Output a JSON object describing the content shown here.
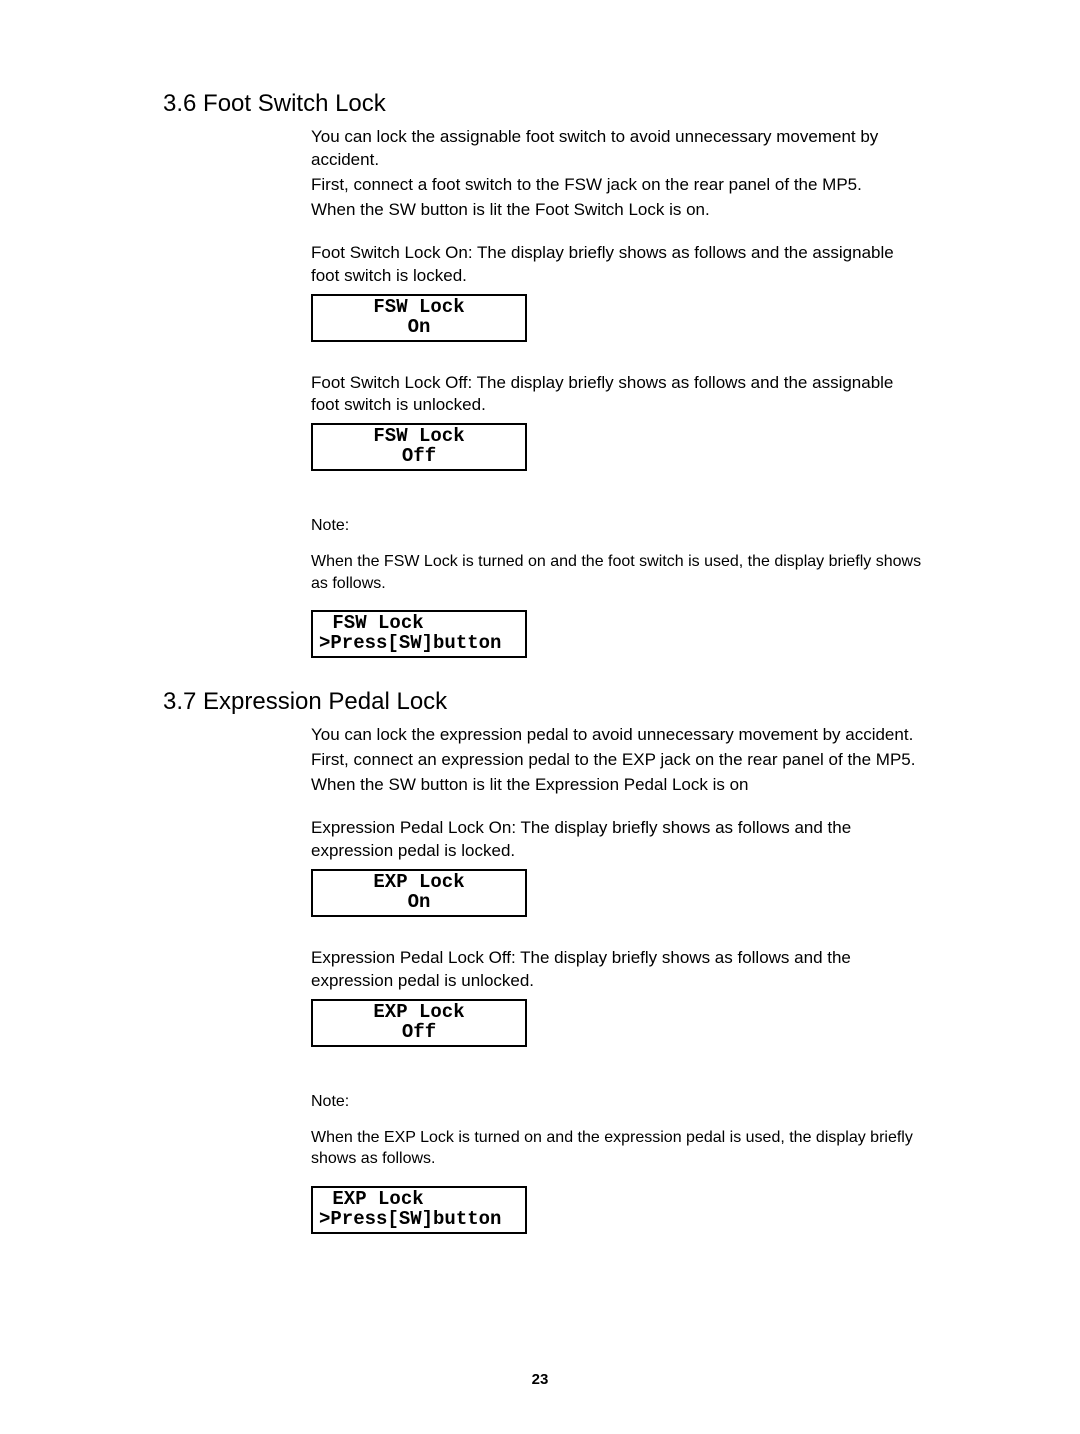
{
  "page_number": "23",
  "section_36": {
    "heading": "3.6 Foot Switch Lock",
    "p1": "You can lock the assignable foot switch to avoid unnecessary movement by accident.",
    "p2": "First, connect a foot switch to the FSW jack on the rear panel of the MP5.",
    "p3": "When the SW button is lit the Foot Switch Lock is on.",
    "p4": "Foot Switch Lock On: The display briefly shows as follows and the assignable foot switch is locked.",
    "lcd_on_line1": "FSW Lock",
    "lcd_on_line2": "On",
    "p5": "Foot Switch Lock Off: The display briefly shows as follows and the assignable foot switch is unlocked.",
    "lcd_off_line1": "FSW Lock",
    "lcd_off_line2": "Off",
    "note_label": "Note:",
    "note_body": "When the FSW Lock is turned on and the foot switch is used, the display briefly shows as follows.",
    "lcd_press_line1": " FSW Lock",
    "lcd_press_line2": ">Press[SW]button"
  },
  "section_37": {
    "heading": "3.7 Expression Pedal Lock",
    "p1": "You can lock the expression pedal to avoid unnecessary movement by accident.",
    "p2": "First, connect an expression pedal to the EXP jack on the rear panel of the MP5.",
    "p3": "When the SW button is lit the Expression Pedal Lock is on",
    "p4": "Expression Pedal Lock On: The display briefly shows as follows and the expression pedal is locked.",
    "lcd_on_line1": "EXP Lock",
    "lcd_on_line2": "On",
    "p5": "Expression Pedal Lock Off: The display briefly shows as follows and the expression pedal is unlocked.",
    "lcd_off_line1": "EXP Lock",
    "lcd_off_line2": "Off",
    "note_label": "Note:",
    "note_body": "When the EXP Lock is turned on and the expression pedal is used, the display briefly shows as follows.",
    "lcd_press_line1": " EXP Lock",
    "lcd_press_line2": ">Press[SW]button"
  }
}
